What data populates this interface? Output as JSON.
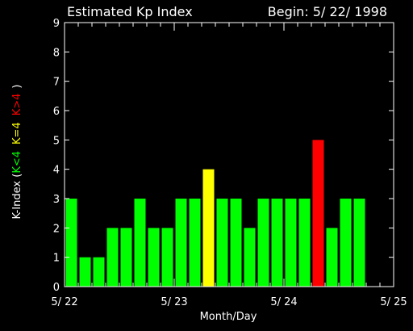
{
  "chart_data": {
    "type": "bar",
    "title": "Estimated Kp Index",
    "begin_label": "Begin: 5/ 22/ 1998",
    "xlabel": "Month/Day",
    "ylabel_prefix": "K-Index (",
    "ylabel_suffix": ")",
    "legend": [
      {
        "label": "K<4",
        "color": "#00ff00"
      },
      {
        "label": "K=4",
        "color": "#ffff00"
      },
      {
        "label": "K>4",
        "color": "#ff0000"
      }
    ],
    "x_ticks": [
      "5/ 22",
      "5/ 23",
      "5/ 24",
      "5/ 25"
    ],
    "ylim": [
      0,
      9
    ],
    "y_ticks": [
      "0",
      "1",
      "2",
      "3",
      "4",
      "5",
      "6",
      "7",
      "8",
      "9"
    ],
    "bins_per_day": 8,
    "days": 3,
    "values": [
      3,
      1,
      1,
      2,
      2,
      3,
      2,
      2,
      3,
      3,
      4,
      3,
      3,
      2,
      3,
      3,
      3,
      3,
      5,
      2,
      3,
      3,
      0,
      0
    ],
    "colors": {
      "low": "#00ff00",
      "equal": "#ffff00",
      "high": "#ff0000",
      "axis": "#ffffff"
    }
  }
}
